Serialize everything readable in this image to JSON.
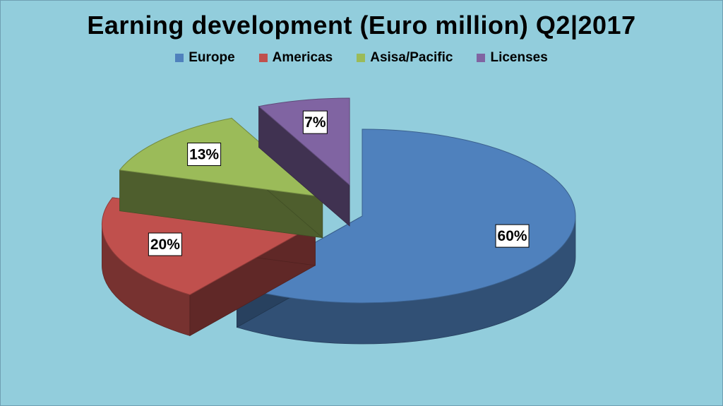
{
  "chart_data": {
    "type": "pie",
    "title": "Earning development (Euro million) Q2|2017",
    "categories": [
      "Europe",
      "Americas",
      "Asisa/Pacific",
      "Licenses"
    ],
    "values": [
      60,
      20,
      13,
      7
    ],
    "labels": [
      "60%",
      "20%",
      "13%",
      "7%"
    ],
    "colors": [
      "#4f81bd",
      "#c0504d",
      "#9bbb59",
      "#8064a2"
    ],
    "style": "3d-exploded",
    "legend": "top"
  }
}
